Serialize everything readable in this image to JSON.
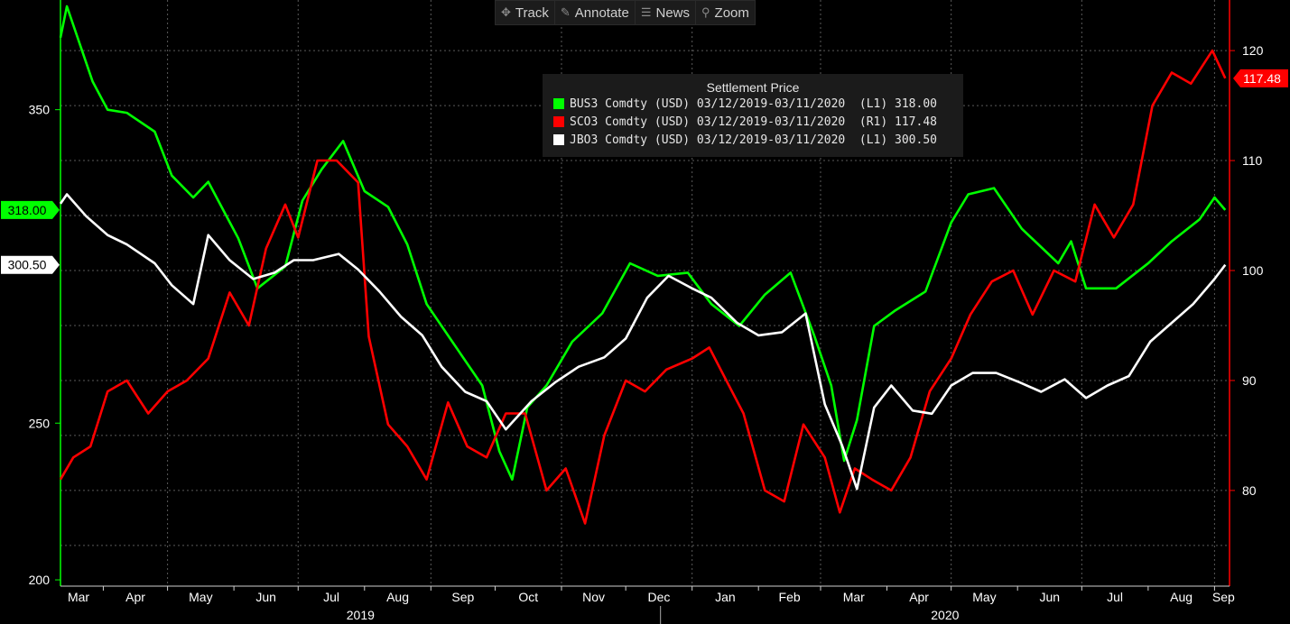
{
  "toolbar": {
    "track": "Track",
    "annotate": "Annotate",
    "news": "News",
    "zoom": "Zoom"
  },
  "chart_data": {
    "type": "line",
    "legend": {
      "title": "Settlement Price",
      "placement": "top-center",
      "entries": [
        {
          "text": "BUS3 Comdty (USD) 03/12/2019-03/11/2020  (L1) 318.00",
          "color": "#00ff00"
        },
        {
          "text": "SCO3 Comdty (USD) 03/12/2019-03/11/2020  (R1) 117.48",
          "color": "#ff0000"
        },
        {
          "text": "JBO3 Comdty (USD) 03/12/2019-03/11/2020  (L1) 300.50",
          "color": "#ffffff"
        }
      ]
    },
    "x_range": [
      "2019-03-12",
      "2020-03-11"
    ],
    "x_tick_labels": [
      "Mar",
      "Apr",
      "May",
      "Jun",
      "Jul",
      "Aug",
      "Sep",
      "Oct",
      "Nov",
      "Dec",
      "Jan",
      "Feb",
      "Mar",
      "Apr",
      "May",
      "Jun",
      "Jul",
      "Aug",
      "Sep"
    ],
    "year_labels": [
      "2019",
      "2020"
    ],
    "left_axis": {
      "ylim": [
        198,
        385
      ],
      "ticks": [
        200,
        250,
        350
      ]
    },
    "right_axis": {
      "ylim": [
        71.3,
        124.6
      ],
      "ticks": [
        80,
        90,
        100,
        110,
        120
      ]
    },
    "grid": true,
    "series": [
      {
        "name": "BUS3 Comdty",
        "axis": "left",
        "color": "#00ff00",
        "last_value_label": "318.00",
        "last_value": 318.0,
        "x": [
          "Mar 12 2019",
          "Mar 15 2019",
          "Mar 27 2019",
          "Apr 3 2019",
          "Apr 12 2019",
          "Apr 25 2019",
          "May 3 2019",
          "May 13 2019",
          "May 20 2019",
          "Jun 3 2019",
          "Jun 12 2019",
          "Jun 25 2019",
          "Jul 3 2019",
          "Jul 12 2019",
          "Jul 22 2019",
          "Aug 1 2019",
          "Aug 12 2019",
          "Aug 21 2019",
          "Aug 30 2019",
          "Sep 11 2019",
          "Sep 25 2019",
          "Oct 3 2019",
          "Oct 9 2019",
          "Oct 16 2019",
          "Oct 25 2019",
          "Nov 6 2019",
          "Nov 20 2019",
          "Dec 3 2019",
          "Dec 16 2019",
          "Dec 30 2019",
          "Jan 10 2020",
          "Jan 23 2020",
          "Feb 4 2020",
          "Feb 16 2020",
          "Feb 27 2020",
          "Mar 6 2020",
          "Mar 12 2020",
          "Mar 18 2020",
          "Mar 26 2020",
          "Apr 5 2020",
          "Apr 19 2020",
          "May 1 2020",
          "May 9 2020",
          "May 21 2020",
          "Jun 3 2020",
          "Jun 20 2020",
          "Jun 26 2020",
          "Jul 3 2020",
          "Jul 17 2020",
          "Aug 1 2020",
          "Aug 12 2020",
          "Aug 25 2020",
          "Sep 1 2020",
          "Sep 6 2020"
        ],
        "values": [
          373,
          383,
          359,
          350,
          349,
          343,
          329,
          322,
          327,
          309,
          293,
          300,
          321,
          331,
          340,
          324,
          319,
          307,
          288,
          276,
          262,
          241,
          232,
          255,
          262,
          276,
          285,
          301,
          297,
          298,
          288,
          281,
          291,
          298,
          278,
          262,
          238,
          251,
          281,
          286,
          292,
          314,
          323,
          325,
          312,
          301,
          308,
          293,
          293,
          301,
          308,
          315,
          322,
          318
        ]
      },
      {
        "name": "SCO3 Comdty",
        "axis": "right",
        "color": "#ff0000",
        "last_value_label": "117.48",
        "last_value": 117.48,
        "x": [
          "Mar 12 2019",
          "Mar 18 2019",
          "Mar 26 2019",
          "Apr 3 2019",
          "Apr 12 2019",
          "Apr 22 2019",
          "May 1 2019",
          "May 10 2019",
          "May 20 2019",
          "May 30 2019",
          "Jun 8 2019",
          "Jun 16 2019",
          "Jun 25 2019",
          "Jul 1 2019",
          "Jul 10 2019",
          "Jul 19 2019",
          "Jul 29 2019",
          "Aug 3 2019",
          "Aug 12 2019",
          "Aug 21 2019",
          "Aug 30 2019",
          "Sep 9 2019",
          "Sep 18 2019",
          "Sep 27 2019",
          "Oct 6 2019",
          "Oct 15 2019",
          "Oct 25 2019",
          "Nov 3 2019",
          "Nov 12 2019",
          "Nov 21 2019",
          "Dec 1 2019",
          "Dec 10 2019",
          "Dec 20 2019",
          "Jan 1 2020",
          "Jan 9 2020",
          "Jan 17 2020",
          "Jan 25 2020",
          "Feb 4 2020",
          "Feb 13 2020",
          "Feb 22 2020",
          "Mar 3 2020",
          "Mar 10 2020",
          "Mar 17 2020",
          "Mar 25 2020",
          "Apr 3 2020",
          "Apr 12 2020",
          "Apr 21 2020",
          "May 1 2020",
          "May 10 2020",
          "May 20 2020",
          "May 30 2020",
          "Jun 8 2020",
          "Jun 18 2020",
          "Jun 28 2020",
          "Jul 7 2020",
          "Jul 16 2020",
          "Jul 25 2020",
          "Aug 3 2020",
          "Aug 12 2020",
          "Aug 21 2020",
          "Aug 31 2020",
          "Sep 6 2020"
        ],
        "values": [
          81,
          83,
          84,
          89,
          90,
          87,
          89,
          90,
          92,
          98,
          95,
          102,
          106,
          103,
          110,
          110,
          108,
          94,
          86,
          84,
          81,
          88,
          84,
          83,
          87,
          87,
          80,
          82,
          77,
          85,
          90,
          89,
          91,
          92,
          93,
          90,
          87,
          80,
          79,
          86,
          83,
          78,
          82,
          81,
          80,
          83,
          89,
          92,
          96,
          99,
          100,
          96,
          100,
          99,
          106,
          103,
          106,
          115,
          118,
          117,
          120,
          117.48
        ]
      },
      {
        "name": "JBO3 Comdty",
        "axis": "left",
        "color": "#ffffff",
        "last_value_label": "300.50",
        "last_value": 300.5,
        "x": [
          "Mar 12 2019",
          "Mar 15 2019",
          "Mar 24 2019",
          "Apr 3 2019",
          "Apr 12 2019",
          "Apr 25 2019",
          "May 3 2019",
          "May 13 2019",
          "May 20 2019",
          "May 30 2019",
          "Jun 10 2019",
          "Jun 20 2019",
          "Jun 29 2019",
          "Jul 8 2019",
          "Jul 20 2019",
          "Jul 29 2019",
          "Aug 8 2019",
          "Aug 18 2019",
          "Aug 28 2019",
          "Sep 6 2019",
          "Sep 17 2019",
          "Sep 27 2019",
          "Oct 6 2019",
          "Oct 18 2019",
          "Oct 29 2019",
          "Nov 9 2019",
          "Nov 21 2019",
          "Dec 1 2019",
          "Dec 11 2019",
          "Dec 21 2019",
          "Jan 1 2020",
          "Jan 10 2020",
          "Jan 22 2020",
          "Feb 1 2020",
          "Feb 12 2020",
          "Feb 23 2020",
          "Mar 3 2020",
          "Mar 11 2020",
          "Mar 18 2020",
          "Mar 26 2020",
          "Apr 3 2020",
          "Apr 13 2020",
          "Apr 22 2020",
          "May 1 2020",
          "May 11 2020",
          "May 22 2020",
          "Jun 2 2020",
          "Jun 12 2020",
          "Jun 23 2020",
          "Jul 3 2020",
          "Jul 13 2020",
          "Jul 23 2020",
          "Aug 2 2020",
          "Aug 12 2020",
          "Aug 22 2020",
          "Sep 1 2020",
          "Sep 6 2020"
        ],
        "values": [
          320,
          323,
          316,
          310,
          307,
          301,
          294,
          288,
          310,
          302,
          296,
          298,
          302,
          302,
          304,
          299,
          292,
          284,
          278,
          268,
          260,
          257,
          248,
          257,
          263,
          268,
          271,
          277,
          290,
          297,
          293,
          290,
          282,
          278,
          279,
          285,
          256,
          243,
          229,
          255,
          262,
          254,
          253,
          262,
          266,
          266,
          263,
          260,
          264,
          258,
          262,
          265,
          276,
          282,
          288,
          296,
          300.5
        ]
      }
    ]
  }
}
